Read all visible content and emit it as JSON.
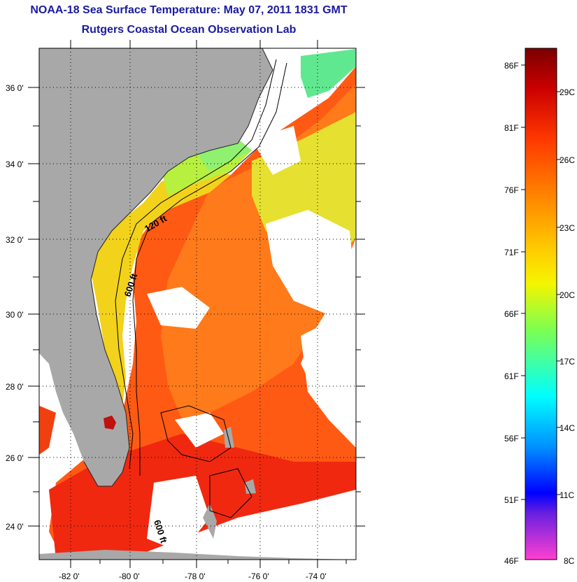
{
  "header": {
    "title": "NOAA-18 Sea Surface Temperature:  May 07, 2011 1831 GMT",
    "subtitle": "Rutgers Coastal Ocean Observation Lab"
  },
  "map": {
    "lat_ticks": [
      "36 0'",
      "34 0'",
      "32 0'",
      "30 0'",
      "28 0'",
      "26 0'",
      "24 0'"
    ],
    "lon_ticks": [
      "-82 0'",
      "-80 0'",
      "-78 0'",
      "-76 0'",
      "-74 0'"
    ],
    "contours": [
      "120 ft",
      "600 ft",
      "600 ft"
    ]
  },
  "colorbar": {
    "fahrenheit": [
      "86F",
      "81F",
      "76F",
      "71F",
      "66F",
      "61F",
      "56F",
      "51F",
      "46F"
    ],
    "celsius": [
      "29C",
      "26C",
      "23C",
      "20C",
      "17C",
      "14C",
      "11C",
      "8C"
    ],
    "colors": {
      "top": "#8b0000",
      "red": "#e81000",
      "orange": "#ff8800",
      "yellow": "#f0f000",
      "green": "#80ff40",
      "cyan": "#00ffff",
      "blue": "#0040ff",
      "purple": "#8a2be2",
      "bottom": "#ff40d0"
    }
  },
  "colors": {
    "land": "#a8a8a8",
    "title": "#1a1aa0",
    "cloud": "#ffffff"
  }
}
